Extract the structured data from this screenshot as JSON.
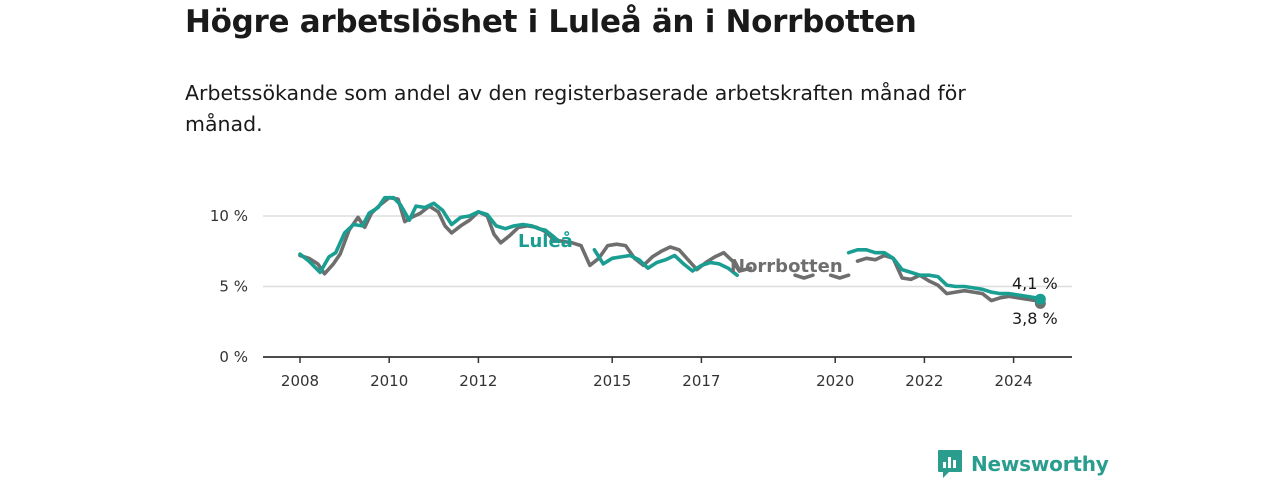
{
  "header": {
    "title": "Högre arbetslöshet i Luleå än i Norrbotten",
    "subtitle": "Arbetssökande som andel av den registerbaserade arbetskraften månad för månad."
  },
  "branding": {
    "logo_text": "Newsworthy",
    "logo_icon": "bar-chart-speech-bubble-icon"
  },
  "colors": {
    "lulea": "#1a9e92",
    "norrbotten": "#6e6e6e",
    "grid": "#dddddd",
    "axis": "#333333",
    "brand": "#2a9d8f"
  },
  "chart_data": {
    "type": "line",
    "title": "Högre arbetslöshet i Luleå än i Norrbotten",
    "subtitle": "Arbetssökande som andel av den registerbaserade arbetskraften månad för månad.",
    "xlabel": "",
    "ylabel": "",
    "xlim": [
      2008,
      2025
    ],
    "ylim": [
      0,
      10
    ],
    "x_ticks": [
      2008,
      2010,
      2012,
      2015,
      2017,
      2020,
      2022,
      2024
    ],
    "x_tick_labels": [
      "2008",
      "2010",
      "2012",
      "2015",
      "2017",
      "2020",
      "2022",
      "2024"
    ],
    "y_ticks": [
      0,
      5,
      10
    ],
    "y_tick_labels": [
      "0 %",
      "5 %",
      "10 %"
    ],
    "grid": "horizontal",
    "series": [
      {
        "name": "Luleå",
        "color": "#1a9e92",
        "end_label": "4,1 %",
        "segments": [
          {
            "x": [
              2008.0,
              2008.2,
              2008.45,
              2008.65,
              2008.8,
              2009.0,
              2009.2,
              2009.4,
              2009.55,
              2009.75,
              2009.9,
              2010.1,
              2010.25,
              2010.45,
              2010.6,
              2010.8,
              2011.0,
              2011.2,
              2011.4,
              2011.6,
              2011.8,
              2012.0,
              2012.2,
              2012.4,
              2012.6,
              2012.8,
              2013.0,
              2013.2,
              2013.35,
              2013.5,
              2013.7,
              2013.8
            ],
            "y": [
              7.3,
              6.8,
              6.0,
              7.1,
              7.4,
              8.8,
              9.4,
              9.3,
              10.2,
              10.6,
              11.3,
              11.3,
              10.8,
              9.7,
              10.7,
              10.6,
              10.9,
              10.4,
              9.4,
              9.9,
              10.0,
              10.3,
              10.1,
              9.3,
              9.1,
              9.3,
              9.4,
              9.3,
              9.1,
              9.0,
              8.5,
              8.2
            ]
          },
          {
            "x": [
              2014.6,
              2014.8,
              2015.0,
              2015.2,
              2015.4,
              2015.6,
              2015.8,
              2016.0,
              2016.2,
              2016.4,
              2016.6,
              2016.8,
              2017.0,
              2017.2,
              2017.4,
              2017.6,
              2017.8
            ],
            "y": [
              7.6,
              6.6,
              7.0,
              7.1,
              7.2,
              6.9,
              6.3,
              6.7,
              6.9,
              7.2,
              6.6,
              6.1,
              6.5,
              6.7,
              6.6,
              6.3,
              5.8
            ]
          },
          {
            "x": [
              2020.3,
              2020.5,
              2020.7,
              2020.9,
              2021.1,
              2021.3,
              2021.5,
              2021.7,
              2021.9,
              2022.1,
              2022.3,
              2022.5,
              2022.7,
              2022.9,
              2023.1,
              2023.3,
              2023.5,
              2023.7,
              2023.9,
              2024.1,
              2024.3,
              2024.5,
              2024.6
            ],
            "y": [
              7.4,
              7.6,
              7.6,
              7.4,
              7.4,
              7.0,
              6.2,
              6.0,
              5.8,
              5.8,
              5.7,
              5.1,
              5.0,
              5.0,
              4.9,
              4.8,
              4.6,
              4.5,
              4.5,
              4.4,
              4.3,
              4.2,
              4.1
            ]
          }
        ]
      },
      {
        "name": "Norrbotten",
        "color": "#6e6e6e",
        "end_label": "3,8 %",
        "segments": [
          {
            "x": [
              2008.0,
              2008.2,
              2008.4,
              2008.55,
              2008.75,
              2008.9,
              2009.1,
              2009.3,
              2009.45,
              2009.6,
              2009.8,
              2010.0,
              2010.2,
              2010.35,
              2010.5,
              2010.7,
              2010.9,
              2011.1,
              2011.25,
              2011.4,
              2011.6,
              2011.8,
              2012.0,
              2012.2,
              2012.35,
              2012.5,
              2012.7,
              2012.9,
              2013.1,
              2013.3,
              2013.5,
              2013.7,
              2013.9,
              2014.1,
              2014.3,
              2014.5,
              2014.7,
              2014.9,
              2015.1,
              2015.3,
              2015.5,
              2015.7,
              2015.9,
              2016.1,
              2016.3,
              2016.5,
              2016.7,
              2016.9,
              2017.1,
              2017.3,
              2017.5,
              2017.7,
              2017.85
            ],
            "y": [
              7.2,
              7.0,
              6.6,
              5.9,
              6.6,
              7.3,
              9.0,
              9.9,
              9.2,
              10.2,
              10.8,
              11.3,
              11.2,
              9.6,
              9.9,
              10.2,
              10.7,
              10.3,
              9.3,
              8.8,
              9.3,
              9.7,
              10.3,
              10.0,
              8.7,
              8.1,
              8.6,
              9.2,
              9.3,
              9.2,
              8.9,
              8.3,
              8.2,
              8.1,
              7.9,
              6.5,
              7.0,
              7.9,
              8.0,
              7.9,
              7.0,
              6.5,
              7.1,
              7.5,
              7.8,
              7.6,
              6.9,
              6.2,
              6.7,
              7.1,
              7.4,
              6.8,
              6.1
            ]
          },
          {
            "x": [
              2017.85,
              2018.1
            ],
            "y": [
              6.1,
              6.3
            ]
          },
          {
            "x": [
              2019.1,
              2019.3,
              2019.5
            ],
            "y": [
              5.8,
              5.6,
              5.8
            ]
          },
          {
            "x": [
              2019.9,
              2020.1,
              2020.3
            ],
            "y": [
              5.8,
              5.6,
              5.8
            ]
          },
          {
            "x": [
              2020.5,
              2020.7,
              2020.9,
              2021.1,
              2021.3,
              2021.5,
              2021.7,
              2021.9,
              2022.1,
              2022.3,
              2022.5,
              2022.7,
              2022.9,
              2023.1,
              2023.3,
              2023.5,
              2023.7,
              2023.9,
              2024.1,
              2024.3,
              2024.5,
              2024.6
            ],
            "y": [
              6.8,
              7.0,
              6.9,
              7.2,
              7.0,
              5.6,
              5.5,
              5.8,
              5.4,
              5.1,
              4.5,
              4.6,
              4.7,
              4.6,
              4.5,
              4.0,
              4.2,
              4.3,
              4.2,
              4.1,
              4.0,
              3.8
            ]
          }
        ]
      }
    ],
    "annotations": [
      "Luleå",
      "Norrbotten"
    ]
  }
}
